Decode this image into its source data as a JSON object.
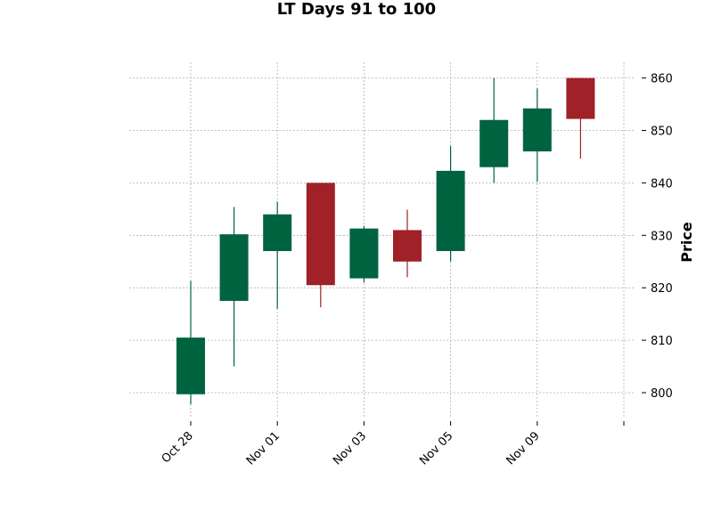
{
  "chart_data": {
    "type": "candlestick",
    "title": "LT Days 91 to 100",
    "xlabel": "",
    "ylabel": "Price",
    "ylim": [
      795,
      863
    ],
    "y_ticks": [
      800,
      810,
      820,
      830,
      840,
      850,
      860
    ],
    "x_ticks": [
      {
        "index": 0,
        "label": "Oct 28"
      },
      {
        "index": 2,
        "label": "Nov 01"
      },
      {
        "index": 4,
        "label": "Nov 03"
      },
      {
        "index": 6,
        "label": "Nov 05"
      },
      {
        "index": 8,
        "label": "Nov 09"
      },
      {
        "index": 10,
        "label": ""
      }
    ],
    "grid": true,
    "up_color": "#006340",
    "down_color": "#a02128",
    "candles": [
      {
        "open": 799.7,
        "high": 821.3,
        "low": 797.8,
        "close": 810.5
      },
      {
        "open": 817.5,
        "high": 835.4,
        "low": 805.0,
        "close": 830.2
      },
      {
        "open": 827.0,
        "high": 836.4,
        "low": 816.0,
        "close": 834.0
      },
      {
        "open": 840.0,
        "high": 840.0,
        "low": 816.3,
        "close": 820.5
      },
      {
        "open": 821.8,
        "high": 831.8,
        "low": 821.0,
        "close": 831.3
      },
      {
        "open": 831.0,
        "high": 834.9,
        "low": 822.0,
        "close": 825.0
      },
      {
        "open": 827.0,
        "high": 847.0,
        "low": 825.0,
        "close": 842.3
      },
      {
        "open": 843.0,
        "high": 860.0,
        "low": 840.0,
        "close": 852.0
      },
      {
        "open": 846.0,
        "high": 858.0,
        "low": 840.2,
        "close": 854.2
      },
      {
        "open": 860.0,
        "high": 860.0,
        "low": 844.6,
        "close": 852.2
      }
    ]
  }
}
